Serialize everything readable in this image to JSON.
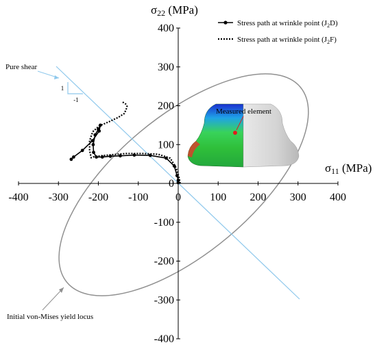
{
  "chart_data": {
    "type": "line",
    "title": "",
    "xlabel": "σ11 (MPa)",
    "ylabel": "σ22 (MPa)",
    "xlabel_parts": {
      "sym": "σ",
      "sub": "11",
      "unit": " (MPa)"
    },
    "ylabel_parts": {
      "sym": "σ",
      "sub": "22",
      "unit": " (MPa)"
    },
    "xlim": [
      -400,
      400
    ],
    "ylim": [
      -400,
      400
    ],
    "xticks": [
      -400,
      -300,
      -200,
      -100,
      0,
      100,
      200,
      300,
      400
    ],
    "yticks": [
      -400,
      -300,
      -200,
      -100,
      0,
      100,
      200,
      300,
      400
    ],
    "grid": false,
    "legend_position": "top-right",
    "series": [
      {
        "name": "Stress path at wrinkle point (J2D)",
        "legend_parts": {
          "pre": "Stress path at wrinkle point (J",
          "sub": "2",
          "post": "D)"
        },
        "style": "solid-markers",
        "color": "#000000",
        "x": [
          0,
          0,
          -3,
          -10,
          -30,
          -70,
          -110,
          -145,
          -170,
          -190,
          -205,
          -212,
          -213,
          -208,
          -200,
          -195,
          -198,
          -215,
          -240,
          -262,
          -268
        ],
        "y": [
          2,
          8,
          20,
          45,
          65,
          72,
          73,
          71,
          70,
          68,
          68,
          80,
          100,
          125,
          140,
          150,
          135,
          110,
          85,
          68,
          62
        ]
      },
      {
        "name": "Stress path at wrinkle point (J2F)",
        "legend_parts": {
          "pre": "Stress path at wrinkle point (J",
          "sub": "2",
          "post": "F)"
        },
        "style": "dotted",
        "color": "#000000",
        "x": [
          5,
          2,
          -5,
          -20,
          -50,
          -90,
          -130,
          -165,
          -195,
          -210,
          -218,
          -222,
          -222,
          -214,
          -198,
          -175,
          -150,
          -135,
          -130,
          -128,
          -132,
          -140
        ],
        "y": [
          0,
          15,
          40,
          65,
          75,
          77,
          77,
          74,
          71,
          69,
          66,
          85,
          110,
          133,
          148,
          158,
          170,
          180,
          192,
          198,
          205,
          210
        ]
      }
    ],
    "reference_lines": [
      {
        "name": "Pure shear",
        "x": [
          -300,
          300
        ],
        "y": [
          300,
          -300
        ],
        "color": "#8ec8ec"
      }
    ],
    "yield_locus": {
      "name": "Initial von-Mises yield locus",
      "a": 410,
      "b": 168,
      "color": "#909090"
    },
    "annotations": {
      "pure_shear": "Pure shear",
      "slope_rise": "1",
      "slope_run": "-1",
      "measured_element": "Measured element",
      "yield_locus": "Initial von-Mises yield locus"
    }
  }
}
